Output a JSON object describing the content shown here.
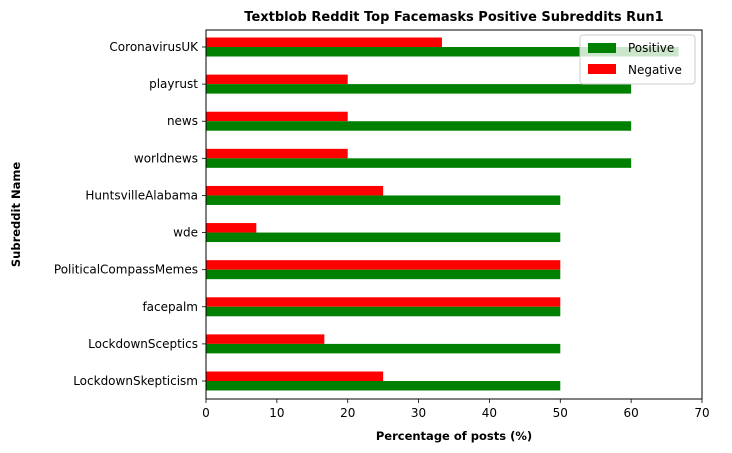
{
  "chart_data": {
    "type": "bar",
    "orientation": "horizontal",
    "title": "Textblob Reddit Top Facemasks Positive Subreddits Run1",
    "xlabel": "Percentage of posts (%)",
    "ylabel": "Subreddit Name",
    "xlim": [
      0,
      70
    ],
    "xticks": [
      0,
      10,
      20,
      30,
      40,
      50,
      60,
      70
    ],
    "grid": false,
    "legend_position": "top-right",
    "categories": [
      "CoronavirusUK",
      "playrust",
      "news",
      "worldnews",
      "HuntsvilleAlabama",
      "wde",
      "PoliticalCompassMemes",
      "facepalm",
      "LockdownSceptics",
      "LockdownSkepticism"
    ],
    "series": [
      {
        "name": "Positive",
        "color": "#008000",
        "values": [
          66.7,
          60,
          60,
          60,
          50,
          50,
          50,
          50,
          50,
          50
        ]
      },
      {
        "name": "Negative",
        "color": "#ff0000",
        "values": [
          33.3,
          20,
          20,
          20,
          25,
          7.1,
          50,
          50,
          16.7,
          25
        ]
      }
    ]
  }
}
